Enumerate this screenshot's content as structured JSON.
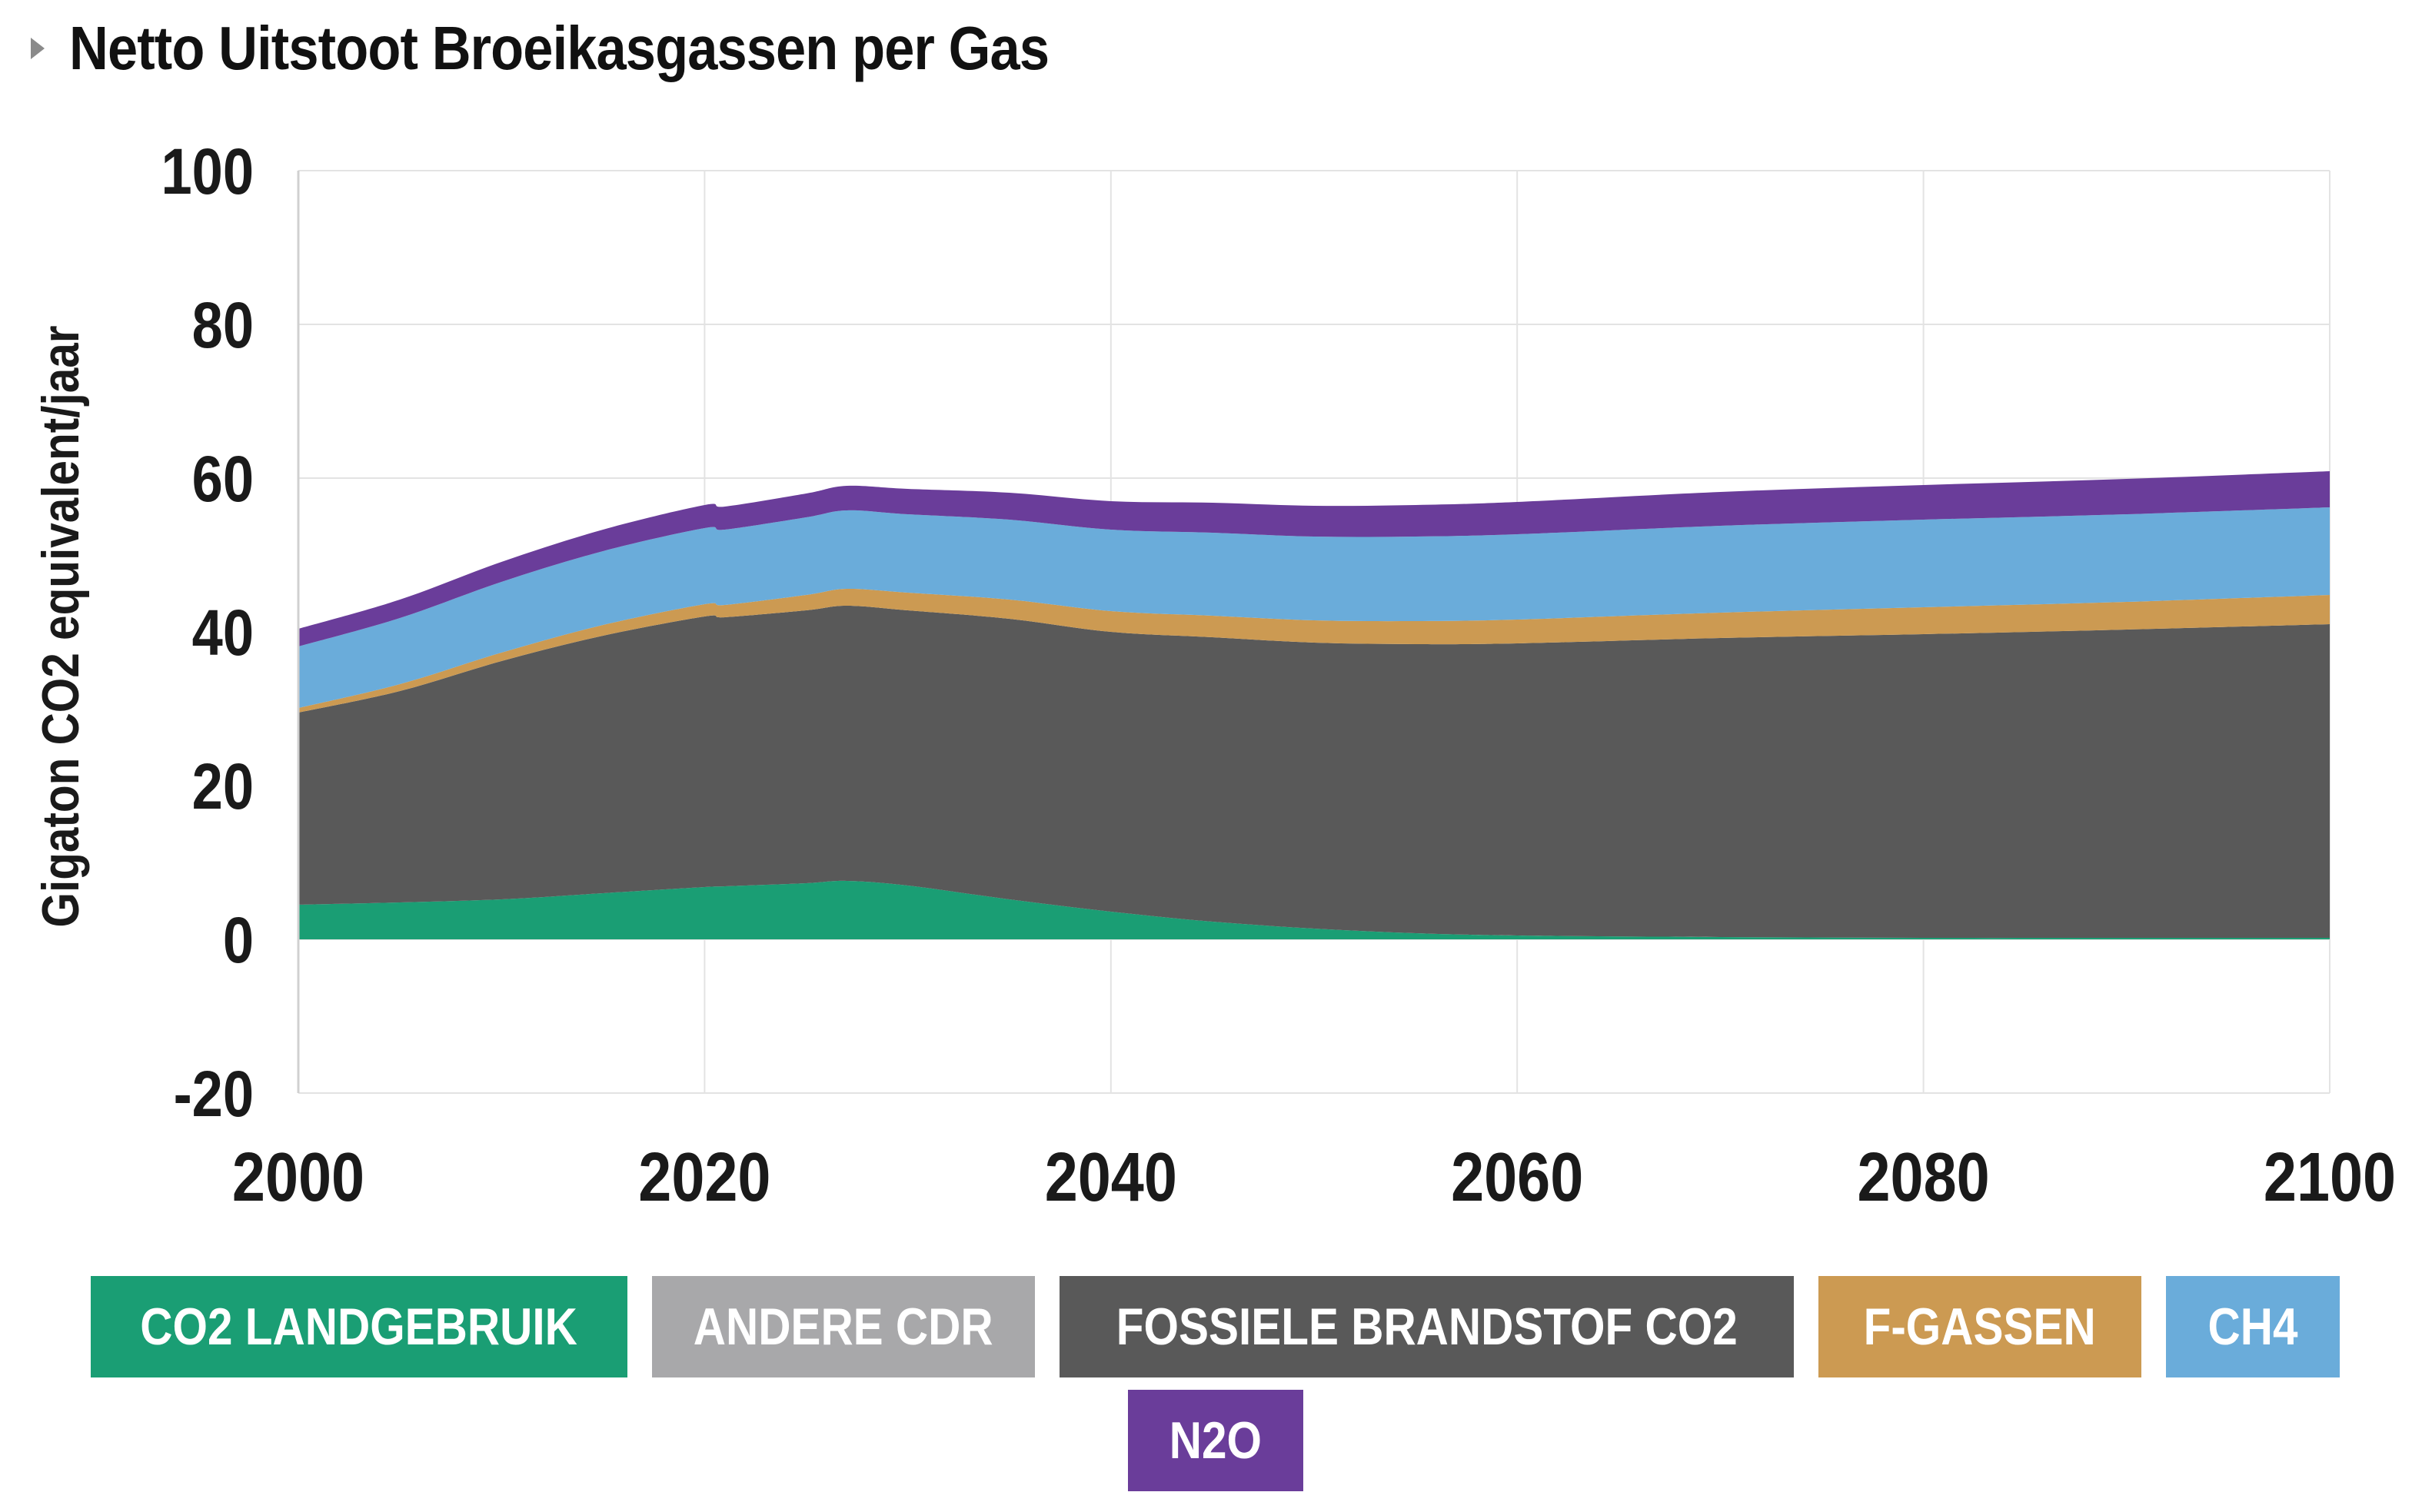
{
  "title": "Netto Uitstoot Broeikasgassen per Gas",
  "chart_data": {
    "type": "area",
    "stacked": true,
    "title": "Netto Uitstoot Broeikasgassen per Gas",
    "xlabel": "",
    "ylabel": "Gigaton CO2 equivalent/jaar",
    "xlim": [
      2000,
      2100
    ],
    "ylim": [
      -20,
      100
    ],
    "x_ticks": [
      2000,
      2020,
      2040,
      2060,
      2080,
      2100
    ],
    "y_ticks": [
      -20,
      0,
      20,
      40,
      60,
      80,
      100
    ],
    "grid": true,
    "legend_position": "bottom",
    "x": [
      2000,
      2005,
      2010,
      2015,
      2020,
      2021,
      2025,
      2027,
      2030,
      2035,
      2040,
      2045,
      2050,
      2055,
      2060,
      2070,
      2080,
      2090,
      2100
    ],
    "series": [
      {
        "name": "CO2 LANDGEBRUIK",
        "color": "#1a9e74",
        "values": [
          4.5,
          4.8,
          5.2,
          6.0,
          6.8,
          6.9,
          7.3,
          7.6,
          7.0,
          5.2,
          3.6,
          2.3,
          1.4,
          0.8,
          0.5,
          0.3,
          0.2,
          0.2,
          0.2
        ]
      },
      {
        "name": "ANDERE CDR",
        "color": "#a8a8aa",
        "values": [
          0,
          0,
          0,
          0,
          0,
          0,
          0,
          0,
          0,
          0,
          0,
          0,
          0,
          0,
          0,
          0,
          0,
          0,
          0
        ]
      },
      {
        "name": "FOSSIELE BRANDSTOF CO2",
        "color": "#595959",
        "values": [
          25.0,
          27.5,
          31.0,
          33.5,
          35.2,
          35.0,
          35.5,
          35.8,
          35.8,
          36.5,
          36.4,
          37.0,
          37.2,
          37.6,
          38.0,
          38.9,
          39.5,
          40.1,
          40.8
        ]
      },
      {
        "name": "F-GASSEN",
        "color": "#cc9a52",
        "values": [
          0.6,
          0.9,
          1.1,
          1.4,
          1.6,
          1.6,
          2.0,
          2.2,
          2.3,
          2.5,
          2.7,
          2.8,
          2.9,
          3.0,
          3.1,
          3.3,
          3.5,
          3.6,
          3.8
        ]
      },
      {
        "name": "CH4",
        "color": "#6aacda",
        "values": [
          8.0,
          8.6,
          9.2,
          9.6,
          9.9,
          9.8,
          10.1,
          10.2,
          10.2,
          10.4,
          10.6,
          10.8,
          10.9,
          11.0,
          11.1,
          11.3,
          11.4,
          11.4,
          11.4
        ]
      },
      {
        "name": "N2O",
        "color": "#6a3d9a",
        "values": [
          2.3,
          2.4,
          2.6,
          2.8,
          3.0,
          3.0,
          3.1,
          3.2,
          3.3,
          3.5,
          3.7,
          3.9,
          4.0,
          4.1,
          4.2,
          4.4,
          4.5,
          4.6,
          4.7
        ]
      }
    ]
  }
}
